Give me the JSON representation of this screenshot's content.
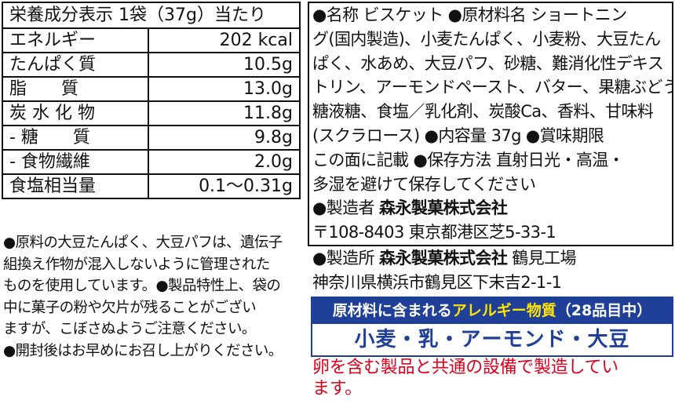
{
  "nutrition": {
    "header": "栄養成分表示 1袋（37g）当たり",
    "rows": [
      [
        "エネルギー",
        "202 kcal"
      ],
      [
        "たんぱく質",
        "10.5g"
      ],
      [
        "脂　　質",
        "13.0g"
      ],
      [
        "炭 水 化 物",
        "11.8g"
      ],
      [
        "- 糖　　質",
        "9.8g"
      ],
      [
        "- 食物繊維",
        "2.0g"
      ],
      [
        "食塩相当量",
        "0.1～0.31g"
      ]
    ]
  },
  "notes": [
    "●原料の大豆たんぱく、大豆パフは、遺伝子",
    "組換え作物が混入しないように管理された",
    "ものを使用しています。●製品特性上、袋の",
    "中に菓子の粉や欠片が残ることがござい",
    "ますが、こぼさぬようご注意ください。",
    "●開封後はお早めにお召し上がりください。"
  ],
  "info": [
    "●名称 ビスケット ●原材料名 ショートニン",
    "グ(国内製造)、小麦たんぱく、小麦粉、大豆たん",
    "ぱく、水あめ、大豆パフ、砂糖、難消化性デキス",
    "トリン、アーモンドペースト、バター、果糖ぶどう",
    "糖液糖、食塩／乳化剤、炭酸Ca、香料、甘味料",
    "(スクラロース) ●内容量 37g ●賞味期限",
    "この面に記載 ●保存方法 直射日光・高温・",
    "多湿を避けて保存してください"
  ],
  "manufacturer": {
    "label": "●製造者",
    "name": "森永製菓株式会社",
    "address": "〒108-8403 東京都港区芝5-33-1"
  },
  "factory": {
    "label": "●製造所",
    "name": "森永製菓株式会社",
    "plant": "鶴見工場",
    "address": "神奈川県横浜市鶴見区下末吉2-1-1"
  },
  "allergy": {
    "title_before": "原材料に含まれる",
    "title_highlight": "アレルギー物質",
    "title_after": "（28品目中）",
    "items": "小麦・乳・アーモンド・大豆"
  },
  "warning": [
    "卵を含む製品と共通の設備で製造してい",
    "ます。"
  ]
}
